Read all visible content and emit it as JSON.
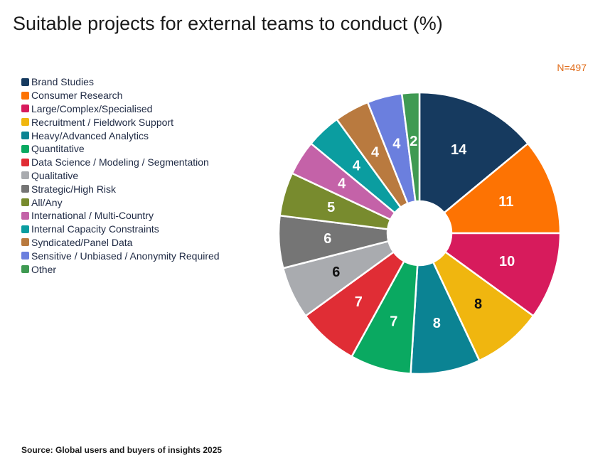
{
  "chart_data": {
    "type": "pie",
    "title": "Suitable projects for external teams to conduct (%)",
    "sample_size": "N=497",
    "source": "Source: Global users and buyers of insights 2025",
    "slices": [
      {
        "label": "Brand Studies",
        "value": 14,
        "color": "#163a5f",
        "text_color": "#ffffff"
      },
      {
        "label": "Consumer Research",
        "value": 11,
        "color": "#fd7303",
        "text_color": "#ffffff"
      },
      {
        "label": "Large/Complex/Specialised",
        "value": 10,
        "color": "#d71b5c",
        "text_color": "#ffffff"
      },
      {
        "label": "Recruitment / Fieldwork Support",
        "value": 8,
        "color": "#f0b60f",
        "text_color": "#111111"
      },
      {
        "label": "Heavy/Advanced Analytics",
        "value": 8,
        "color": "#0b8393",
        "text_color": "#ffffff"
      },
      {
        "label": "Quantitative",
        "value": 7,
        "color": "#0aa961",
        "text_color": "#ffffff"
      },
      {
        "label": "Data Science / Modeling / Segmentation",
        "value": 7,
        "color": "#e02d35",
        "text_color": "#ffffff"
      },
      {
        "label": "Qualitative",
        "value": 6,
        "color": "#a9abaf",
        "text_color": "#111111"
      },
      {
        "label": "Strategic/High Risk",
        "value": 6,
        "color": "#757575",
        "text_color": "#ffffff"
      },
      {
        "label": "All/Any",
        "value": 5,
        "color": "#788b2e",
        "text_color": "#ffffff"
      },
      {
        "label": "International / Multi-Country",
        "value": 4,
        "color": "#c462a8",
        "text_color": "#ffffff"
      },
      {
        "label": "Internal Capacity Constraints",
        "value": 4,
        "color": "#0b9da0",
        "text_color": "#ffffff"
      },
      {
        "label": "Syndicated/Panel Data",
        "value": 4,
        "color": "#b97a3f",
        "text_color": "#ffffff"
      },
      {
        "label": "Sensitive / Unbiased / Anonymity Required",
        "value": 4,
        "color": "#6b7fde",
        "text_color": "#ffffff"
      },
      {
        "label": "Other",
        "value": 2,
        "color": "#3f9a52",
        "text_color": "#ffffff"
      }
    ]
  }
}
